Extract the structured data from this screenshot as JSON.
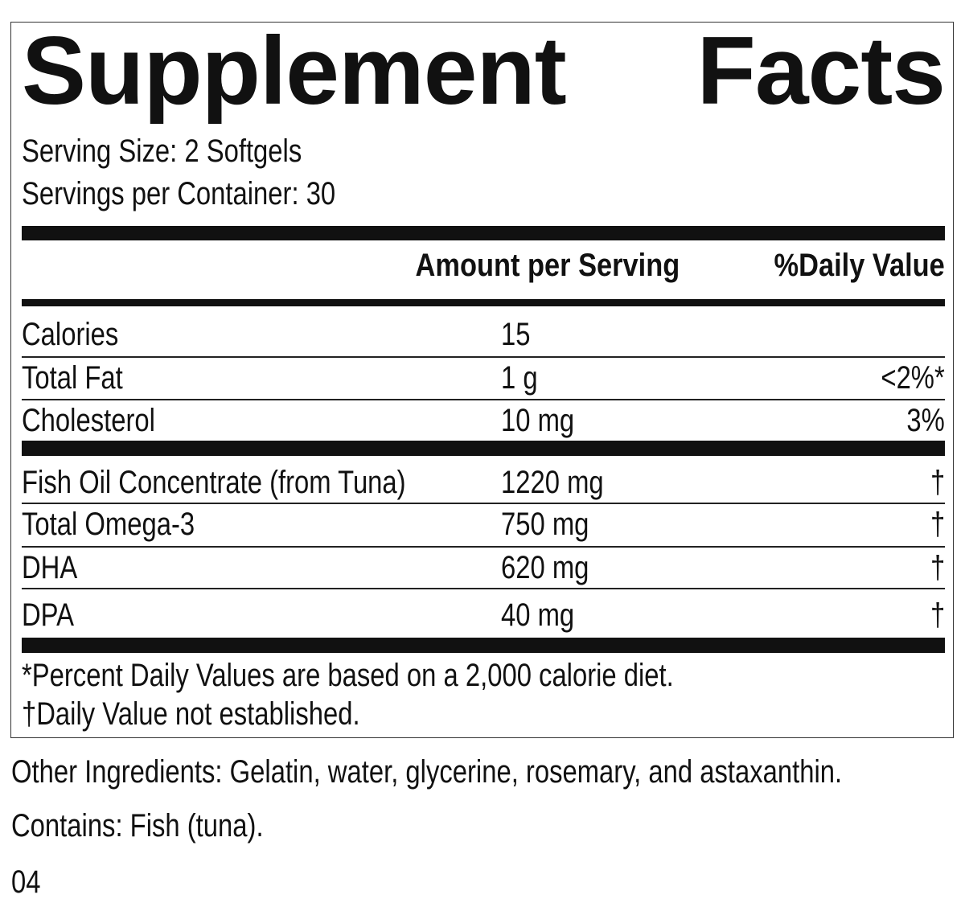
{
  "header": {
    "title": "Supplement Facts",
    "serving_size": "Serving Size: 2 Softgels",
    "servings_per_container": "Servings per Container: 30"
  },
  "table": {
    "columns": [
      "Amount per Serving",
      "%Daily Value"
    ],
    "rows": [
      {
        "name": "Calories",
        "amount": "15"
      },
      {
        "name": "Total Fat",
        "amount": "1 g",
        "dv": "<2%*"
      },
      {
        "name": "Cholesterol",
        "amount": "10 mg",
        "dv": "3%"
      },
      {
        "name": "Fish Oil Concentrate (from Tuna)",
        "amount": "1220 mg",
        "dv": "†"
      },
      {
        "name": "Total Omega-3",
        "amount": "750 mg",
        "dv": "†"
      },
      {
        "name": "DHA",
        "amount": "620 mg",
        "dv": "†"
      },
      {
        "name": "DPA",
        "amount": "40 mg",
        "dv": "†"
      }
    ]
  },
  "footnotes": [
    "*Percent Daily Values are based on a 2,000 calorie diet.",
    "†Daily Value not established."
  ],
  "other_ingredients": "Other Ingredients: Gelatin, water, glycerine, rosemary, and astaxanthin.",
  "contains": "Contains: Fish (tuna).",
  "code": "04"
}
